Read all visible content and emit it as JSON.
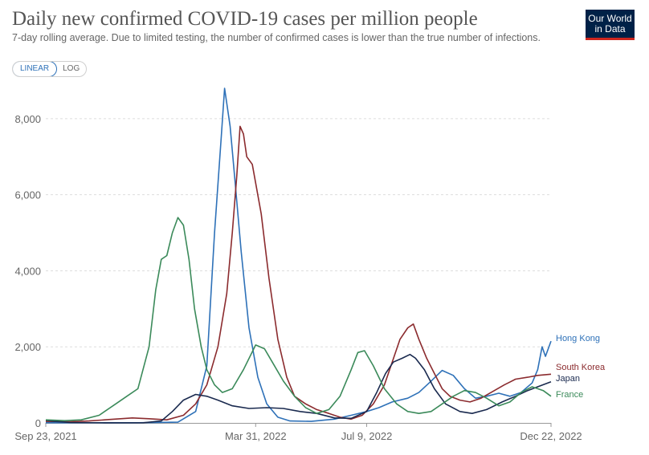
{
  "title": "Daily new confirmed COVID-19 cases per million people",
  "subtitle": "7-day rolling average. Due to limited testing, the number of confirmed cases is lower than the true number of infections.",
  "logo": {
    "line1": "Our World",
    "line2": "in Data"
  },
  "toggle": {
    "linear_label": "LINEAR",
    "log_label": "LOG"
  },
  "chart_data": {
    "type": "line",
    "title": "Daily new confirmed COVID-19 cases per million people",
    "xlabel": "",
    "ylabel": "",
    "xlim": [
      "2021-09-23",
      "2022-12-22"
    ],
    "ylim": [
      0,
      8800
    ],
    "y_ticks": [
      0,
      2000,
      4000,
      6000,
      8000
    ],
    "y_tick_labels": [
      "0",
      "2,000",
      "4,000",
      "6,000",
      "8,000"
    ],
    "x_ticks": [
      "2021-09-23",
      "2022-03-31",
      "2022-07-09",
      "2022-12-22"
    ],
    "x_tick_labels": [
      "Sep 23, 2021",
      "Mar 31, 2022",
      "Jul 9, 2022",
      "Dec 22, 2022"
    ],
    "grid": "horizontal dashed",
    "legend": "end-of-line labels (right)",
    "series": [
      {
        "name": "Hong Kong",
        "color": "#2e71b8",
        "points": [
          [
            "2021-09-23",
            5
          ],
          [
            "2021-12-15",
            5
          ],
          [
            "2022-01-20",
            20
          ],
          [
            "2022-02-05",
            300
          ],
          [
            "2022-02-15",
            1500
          ],
          [
            "2022-02-22",
            5000
          ],
          [
            "2022-02-28",
            7500
          ],
          [
            "2022-03-03",
            8800
          ],
          [
            "2022-03-08",
            7800
          ],
          [
            "2022-03-12",
            6500
          ],
          [
            "2022-03-18",
            4500
          ],
          [
            "2022-03-25",
            2500
          ],
          [
            "2022-04-02",
            1200
          ],
          [
            "2022-04-10",
            500
          ],
          [
            "2022-04-20",
            150
          ],
          [
            "2022-05-01",
            50
          ],
          [
            "2022-05-20",
            40
          ],
          [
            "2022-06-10",
            100
          ],
          [
            "2022-06-25",
            200
          ],
          [
            "2022-07-09",
            300
          ],
          [
            "2022-07-20",
            400
          ],
          [
            "2022-08-01",
            550
          ],
          [
            "2022-08-15",
            650
          ],
          [
            "2022-08-25",
            800
          ],
          [
            "2022-09-05",
            1100
          ],
          [
            "2022-09-15",
            1380
          ],
          [
            "2022-09-25",
            1250
          ],
          [
            "2022-10-05",
            900
          ],
          [
            "2022-10-15",
            650
          ],
          [
            "2022-10-25",
            700
          ],
          [
            "2022-11-05",
            780
          ],
          [
            "2022-11-15",
            700
          ],
          [
            "2022-11-25",
            800
          ],
          [
            "2022-12-05",
            1050
          ],
          [
            "2022-12-10",
            1400
          ],
          [
            "2022-12-14",
            2000
          ],
          [
            "2022-12-17",
            1750
          ],
          [
            "2022-12-22",
            2150
          ]
        ]
      },
      {
        "name": "South Korea",
        "color": "#8b2b2e",
        "points": [
          [
            "2021-09-23",
            40
          ],
          [
            "2021-10-15",
            30
          ],
          [
            "2021-11-01",
            50
          ],
          [
            "2021-11-20",
            90
          ],
          [
            "2021-12-10",
            130
          ],
          [
            "2021-12-25",
            110
          ],
          [
            "2022-01-10",
            80
          ],
          [
            "2022-01-25",
            200
          ],
          [
            "2022-02-05",
            500
          ],
          [
            "2022-02-15",
            1000
          ],
          [
            "2022-02-25",
            2000
          ],
          [
            "2022-03-05",
            3400
          ],
          [
            "2022-03-10",
            5000
          ],
          [
            "2022-03-14",
            6500
          ],
          [
            "2022-03-17",
            7800
          ],
          [
            "2022-03-20",
            7600
          ],
          [
            "2022-03-23",
            7000
          ],
          [
            "2022-03-28",
            6800
          ],
          [
            "2022-04-05",
            5500
          ],
          [
            "2022-04-12",
            3800
          ],
          [
            "2022-04-20",
            2200
          ],
          [
            "2022-04-28",
            1200
          ],
          [
            "2022-05-05",
            700
          ],
          [
            "2022-05-15",
            500
          ],
          [
            "2022-05-25",
            350
          ],
          [
            "2022-06-05",
            250
          ],
          [
            "2022-06-15",
            150
          ],
          [
            "2022-06-25",
            100
          ],
          [
            "2022-07-05",
            200
          ],
          [
            "2022-07-15",
            500
          ],
          [
            "2022-07-25",
            1000
          ],
          [
            "2022-08-01",
            1600
          ],
          [
            "2022-08-08",
            2200
          ],
          [
            "2022-08-15",
            2500
          ],
          [
            "2022-08-20",
            2600
          ],
          [
            "2022-08-25",
            2200
          ],
          [
            "2022-09-01",
            1700
          ],
          [
            "2022-09-08",
            1300
          ],
          [
            "2022-09-15",
            900
          ],
          [
            "2022-09-22",
            700
          ],
          [
            "2022-10-01",
            600
          ],
          [
            "2022-10-10",
            550
          ],
          [
            "2022-10-20",
            650
          ],
          [
            "2022-11-01",
            850
          ],
          [
            "2022-11-10",
            1000
          ],
          [
            "2022-11-20",
            1150
          ],
          [
            "2022-12-01",
            1200
          ],
          [
            "2022-12-10",
            1250
          ],
          [
            "2022-12-22",
            1280
          ]
        ]
      },
      {
        "name": "Japan",
        "color": "#1a2a4f",
        "points": [
          [
            "2021-09-23",
            70
          ],
          [
            "2021-10-01",
            40
          ],
          [
            "2021-10-15",
            10
          ],
          [
            "2021-11-15",
            3
          ],
          [
            "2021-12-20",
            5
          ],
          [
            "2022-01-05",
            50
          ],
          [
            "2022-01-15",
            300
          ],
          [
            "2022-01-25",
            600
          ],
          [
            "2022-02-05",
            750
          ],
          [
            "2022-02-15",
            700
          ],
          [
            "2022-02-25",
            600
          ],
          [
            "2022-03-10",
            450
          ],
          [
            "2022-03-25",
            380
          ],
          [
            "2022-04-10",
            400
          ],
          [
            "2022-04-25",
            380
          ],
          [
            "2022-05-10",
            300
          ],
          [
            "2022-05-25",
            250
          ],
          [
            "2022-06-10",
            130
          ],
          [
            "2022-06-25",
            120
          ],
          [
            "2022-07-09",
            300
          ],
          [
            "2022-07-18",
            800
          ],
          [
            "2022-07-26",
            1300
          ],
          [
            "2022-08-02",
            1600
          ],
          [
            "2022-08-10",
            1700
          ],
          [
            "2022-08-17",
            1800
          ],
          [
            "2022-08-22",
            1700
          ],
          [
            "2022-08-30",
            1400
          ],
          [
            "2022-09-08",
            900
          ],
          [
            "2022-09-18",
            500
          ],
          [
            "2022-10-01",
            300
          ],
          [
            "2022-10-12",
            250
          ],
          [
            "2022-10-25",
            350
          ],
          [
            "2022-11-08",
            550
          ],
          [
            "2022-11-20",
            700
          ],
          [
            "2022-12-01",
            850
          ],
          [
            "2022-12-10",
            950
          ],
          [
            "2022-12-22",
            1080
          ]
        ]
      },
      {
        "name": "France",
        "color": "#3b8a5a",
        "points": [
          [
            "2021-09-23",
            80
          ],
          [
            "2021-10-10",
            60
          ],
          [
            "2021-10-25",
            80
          ],
          [
            "2021-11-10",
            200
          ],
          [
            "2021-11-25",
            500
          ],
          [
            "2021-12-05",
            700
          ],
          [
            "2021-12-15",
            900
          ],
          [
            "2021-12-25",
            2000
          ],
          [
            "2021-12-31",
            3500
          ],
          [
            "2022-01-05",
            4300
          ],
          [
            "2022-01-10",
            4400
          ],
          [
            "2022-01-15",
            5000
          ],
          [
            "2022-01-20",
            5400
          ],
          [
            "2022-01-25",
            5200
          ],
          [
            "2022-01-30",
            4300
          ],
          [
            "2022-02-04",
            3000
          ],
          [
            "2022-02-10",
            2000
          ],
          [
            "2022-02-15",
            1400
          ],
          [
            "2022-02-22",
            1000
          ],
          [
            "2022-03-01",
            800
          ],
          [
            "2022-03-10",
            900
          ],
          [
            "2022-03-20",
            1400
          ],
          [
            "2022-03-31",
            2050
          ],
          [
            "2022-04-08",
            1950
          ],
          [
            "2022-04-15",
            1600
          ],
          [
            "2022-04-25",
            1100
          ],
          [
            "2022-05-05",
            700
          ],
          [
            "2022-05-15",
            400
          ],
          [
            "2022-05-25",
            250
          ],
          [
            "2022-06-05",
            350
          ],
          [
            "2022-06-15",
            700
          ],
          [
            "2022-06-25",
            1400
          ],
          [
            "2022-07-01",
            1850
          ],
          [
            "2022-07-07",
            1900
          ],
          [
            "2022-07-15",
            1500
          ],
          [
            "2022-07-25",
            900
          ],
          [
            "2022-08-05",
            500
          ],
          [
            "2022-08-15",
            300
          ],
          [
            "2022-08-25",
            250
          ],
          [
            "2022-09-05",
            300
          ],
          [
            "2022-09-15",
            500
          ],
          [
            "2022-09-25",
            700
          ],
          [
            "2022-10-05",
            850
          ],
          [
            "2022-10-15",
            800
          ],
          [
            "2022-10-25",
            650
          ],
          [
            "2022-11-05",
            450
          ],
          [
            "2022-11-15",
            550
          ],
          [
            "2022-11-25",
            800
          ],
          [
            "2022-12-05",
            950
          ],
          [
            "2022-12-15",
            850
          ],
          [
            "2022-12-22",
            700
          ]
        ]
      }
    ]
  }
}
